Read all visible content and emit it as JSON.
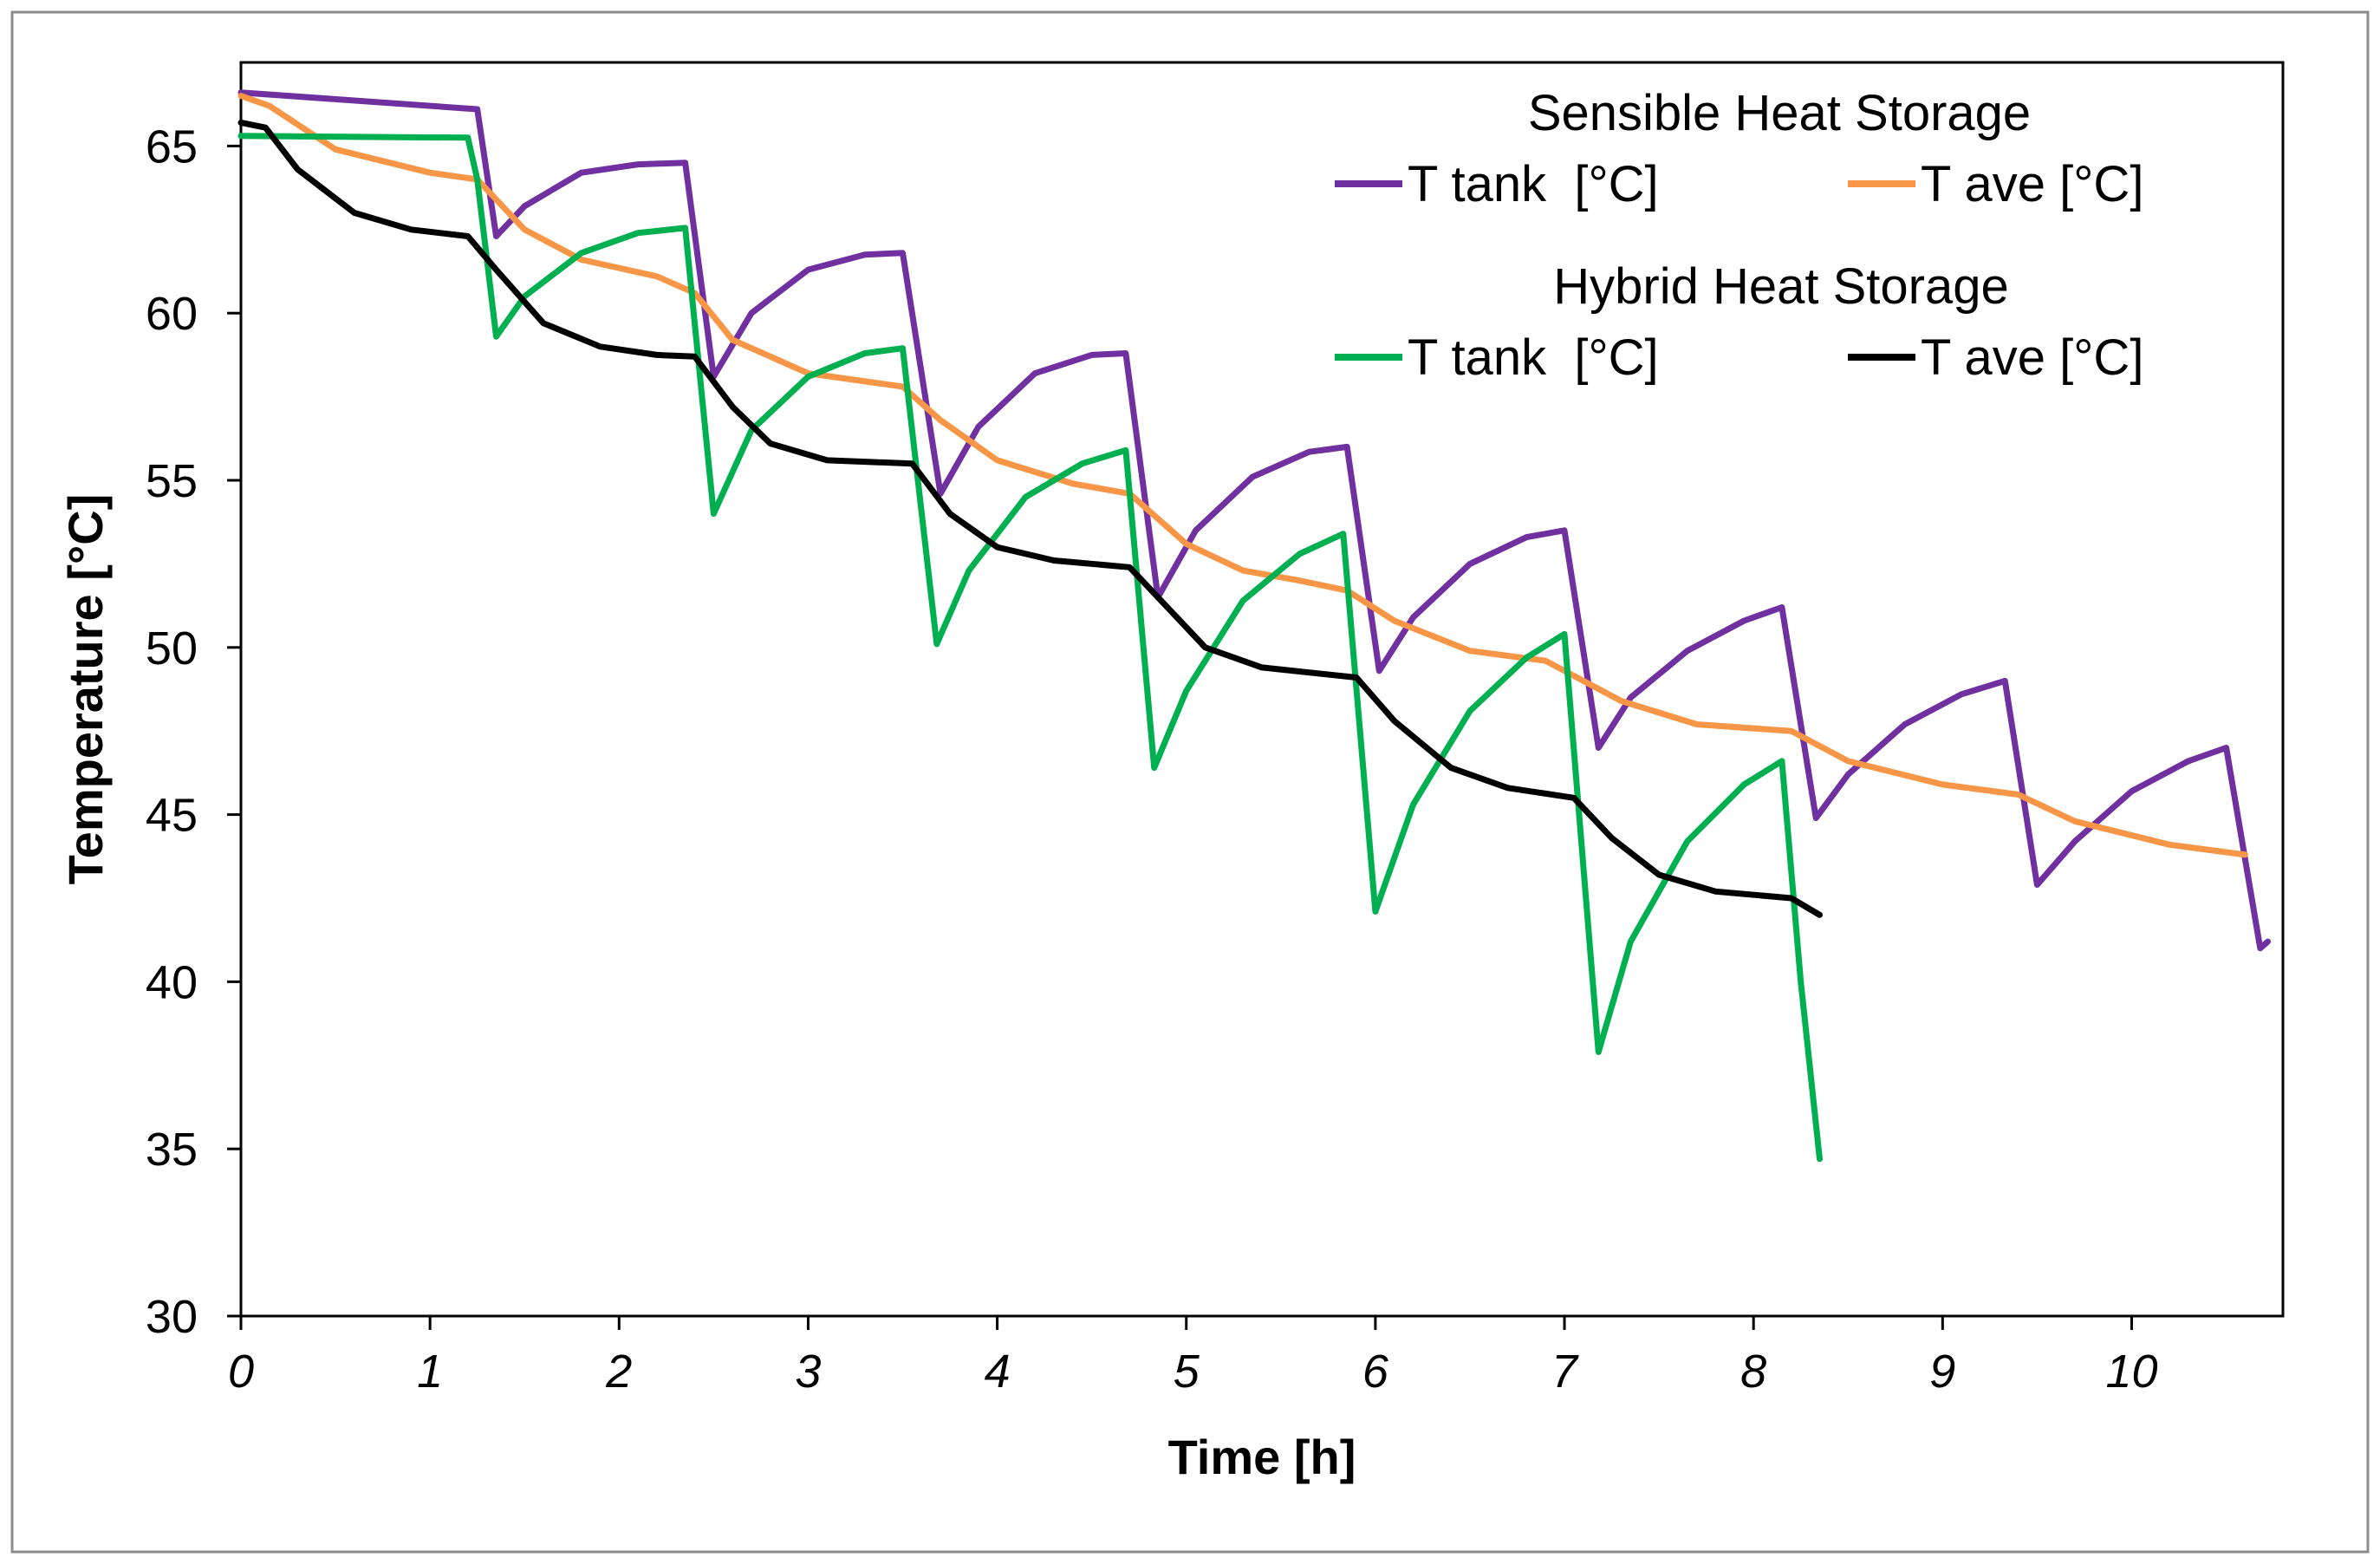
{
  "chart_data": {
    "type": "line",
    "title": "",
    "xlabel": "Time [h]",
    "ylabel": "Temperature [°C]",
    "xlim": [
      0,
      10.8
    ],
    "ylim": [
      30,
      67.5
    ],
    "xticks": [
      0,
      1,
      2,
      3,
      4,
      5,
      6,
      7,
      8,
      9,
      10
    ],
    "yticks": [
      30,
      35,
      40,
      45,
      50,
      55,
      60,
      65
    ],
    "grid": false,
    "legend": {
      "position": "top-right",
      "groups": [
        {
          "title": "Sensible Heat Storage",
          "series": [
            "sensible_tank",
            "sensible_ave"
          ]
        },
        {
          "title": "Hybrid Heat Storage",
          "series": [
            "hybrid_tank",
            "hybrid_ave"
          ]
        }
      ]
    },
    "series": [
      {
        "id": "sensible_tank",
        "name": "T tank  [°C]",
        "group": "Sensible Heat Storage",
        "color": "#7030a0",
        "points": [
          [
            0,
            66.6
          ],
          [
            1.25,
            66.1
          ],
          [
            1.35,
            62.3
          ],
          [
            1.5,
            63.2
          ],
          [
            1.8,
            64.2
          ],
          [
            2.1,
            64.45
          ],
          [
            2.35,
            64.5
          ],
          [
            2.5,
            58.1
          ],
          [
            2.7,
            60.0
          ],
          [
            3.0,
            61.3
          ],
          [
            3.3,
            61.75
          ],
          [
            3.5,
            61.8
          ],
          [
            3.7,
            54.6
          ],
          [
            3.9,
            56.6
          ],
          [
            4.2,
            58.2
          ],
          [
            4.5,
            58.75
          ],
          [
            4.68,
            58.8
          ],
          [
            4.85,
            51.5
          ],
          [
            5.05,
            53.5
          ],
          [
            5.35,
            55.1
          ],
          [
            5.65,
            55.85
          ],
          [
            5.85,
            56.0
          ],
          [
            6.02,
            49.3
          ],
          [
            6.2,
            50.9
          ],
          [
            6.5,
            52.5
          ],
          [
            6.8,
            53.3
          ],
          [
            7.0,
            53.5
          ],
          [
            7.18,
            47.0
          ],
          [
            7.35,
            48.5
          ],
          [
            7.65,
            49.9
          ],
          [
            7.95,
            50.8
          ],
          [
            8.15,
            51.2
          ],
          [
            8.33,
            44.9
          ],
          [
            8.5,
            46.2
          ],
          [
            8.8,
            47.7
          ],
          [
            9.1,
            48.6
          ],
          [
            9.33,
            49.0
          ],
          [
            9.5,
            42.9
          ],
          [
            9.7,
            44.2
          ],
          [
            10.0,
            45.7
          ],
          [
            10.3,
            46.6
          ],
          [
            10.5,
            47.0
          ],
          [
            10.68,
            41.0
          ],
          [
            10.72,
            41.2
          ]
        ]
      },
      {
        "id": "sensible_ave",
        "name": "T ave [°C]",
        "group": "Sensible Heat Storage",
        "color": "#f79646",
        "points": [
          [
            0,
            66.5
          ],
          [
            0.15,
            66.2
          ],
          [
            0.5,
            64.9
          ],
          [
            1.0,
            64.2
          ],
          [
            1.25,
            64.0
          ],
          [
            1.5,
            62.5
          ],
          [
            1.8,
            61.6
          ],
          [
            2.2,
            61.1
          ],
          [
            2.4,
            60.6
          ],
          [
            2.6,
            59.2
          ],
          [
            3.0,
            58.2
          ],
          [
            3.5,
            57.8
          ],
          [
            3.7,
            56.8
          ],
          [
            4.0,
            55.6
          ],
          [
            4.4,
            54.9
          ],
          [
            4.7,
            54.6
          ],
          [
            5.0,
            53.1
          ],
          [
            5.3,
            52.3
          ],
          [
            5.6,
            52.0
          ],
          [
            5.85,
            51.7
          ],
          [
            6.1,
            50.8
          ],
          [
            6.5,
            49.9
          ],
          [
            6.9,
            49.6
          ],
          [
            7.3,
            48.4
          ],
          [
            7.7,
            47.7
          ],
          [
            8.2,
            47.5
          ],
          [
            8.5,
            46.6
          ],
          [
            9.0,
            45.9
          ],
          [
            9.4,
            45.6
          ],
          [
            9.7,
            44.8
          ],
          [
            10.2,
            44.1
          ],
          [
            10.6,
            43.8
          ]
        ]
      },
      {
        "id": "hybrid_tank",
        "name": "T tank  [°C]",
        "group": "Hybrid Heat Storage",
        "color": "#00b050",
        "points": [
          [
            0,
            65.3
          ],
          [
            1.2,
            65.25
          ],
          [
            1.25,
            64.0
          ],
          [
            1.35,
            59.3
          ],
          [
            1.5,
            60.5
          ],
          [
            1.8,
            61.8
          ],
          [
            2.1,
            62.4
          ],
          [
            2.35,
            62.55
          ],
          [
            2.5,
            54.0
          ],
          [
            2.7,
            56.5
          ],
          [
            3.0,
            58.1
          ],
          [
            3.3,
            58.8
          ],
          [
            3.5,
            58.95
          ],
          [
            3.68,
            50.1
          ],
          [
            3.85,
            52.3
          ],
          [
            4.15,
            54.5
          ],
          [
            4.45,
            55.5
          ],
          [
            4.68,
            55.9
          ],
          [
            4.83,
            46.4
          ],
          [
            5.0,
            48.7
          ],
          [
            5.3,
            51.4
          ],
          [
            5.6,
            52.8
          ],
          [
            5.83,
            53.4
          ],
          [
            6.0,
            42.1
          ],
          [
            6.2,
            45.3
          ],
          [
            6.5,
            48.1
          ],
          [
            6.8,
            49.7
          ],
          [
            7.0,
            50.4
          ],
          [
            7.18,
            37.9
          ],
          [
            7.35,
            41.2
          ],
          [
            7.65,
            44.2
          ],
          [
            7.95,
            45.9
          ],
          [
            8.15,
            46.6
          ],
          [
            8.25,
            40.0
          ],
          [
            8.35,
            34.7
          ]
        ]
      },
      {
        "id": "hybrid_ave",
        "name": "T ave [°C]",
        "group": "Hybrid Heat Storage",
        "color": "#000000",
        "points": [
          [
            0,
            65.7
          ],
          [
            0.13,
            65.55
          ],
          [
            0.3,
            64.3
          ],
          [
            0.6,
            63.0
          ],
          [
            0.9,
            62.5
          ],
          [
            1.2,
            62.3
          ],
          [
            1.35,
            61.3
          ],
          [
            1.6,
            59.7
          ],
          [
            1.9,
            59.0
          ],
          [
            2.2,
            58.75
          ],
          [
            2.4,
            58.7
          ],
          [
            2.6,
            57.2
          ],
          [
            2.8,
            56.1
          ],
          [
            3.1,
            55.6
          ],
          [
            3.55,
            55.5
          ],
          [
            3.75,
            54.0
          ],
          [
            4.0,
            53.0
          ],
          [
            4.3,
            52.6
          ],
          [
            4.7,
            52.4
          ],
          [
            4.9,
            51.2
          ],
          [
            5.1,
            50.0
          ],
          [
            5.4,
            49.4
          ],
          [
            5.9,
            49.1
          ],
          [
            6.1,
            47.8
          ],
          [
            6.4,
            46.4
          ],
          [
            6.7,
            45.8
          ],
          [
            7.05,
            45.5
          ],
          [
            7.25,
            44.3
          ],
          [
            7.5,
            43.2
          ],
          [
            7.8,
            42.7
          ],
          [
            8.2,
            42.5
          ],
          [
            8.35,
            42.0
          ]
        ]
      }
    ]
  }
}
